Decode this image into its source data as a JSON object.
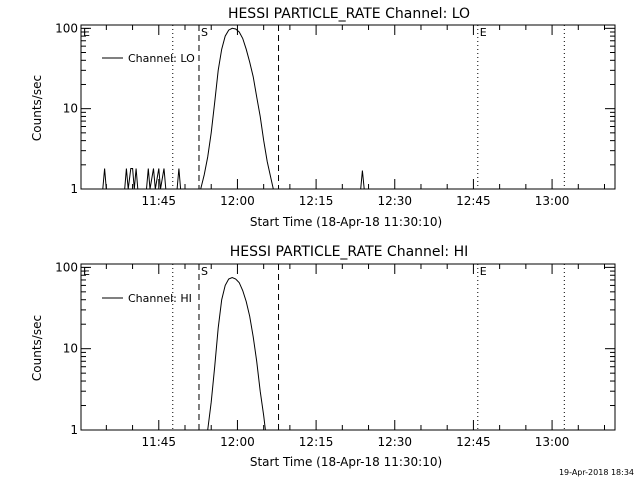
{
  "footer": {
    "timestamp": "19-Apr-2018 18:34"
  },
  "chart_data": [
    {
      "type": "line",
      "title": "HESSI PARTICLE_RATE Channel: LO",
      "xlabel": "Start Time (18-Apr-18 11:30:10)",
      "ylabel": "Counts/sec",
      "y_scale": "log",
      "ylim": [
        1,
        110
      ],
      "xlim": [
        "11:30:10",
        "13:12:00"
      ],
      "x_ticks": [
        "11:45",
        "12:00",
        "12:15",
        "12:30",
        "12:45",
        "13:00"
      ],
      "y_ticks": [
        "1",
        "10",
        "100"
      ],
      "legend": {
        "entries": [
          "Channel: LO"
        ],
        "position": "top-left"
      },
      "markers": [
        {
          "label": "E",
          "time": "11:30:10",
          "style": "none"
        },
        {
          "label": "",
          "time": "11:47:40",
          "style": "dotted"
        },
        {
          "label": "S",
          "time": "11:52:40",
          "style": "dashed"
        },
        {
          "label": "",
          "time": "12:07:50",
          "style": "dashed"
        },
        {
          "label": "E",
          "time": "12:45:50",
          "style": "dotted"
        },
        {
          "label": "",
          "time": "13:02:20",
          "style": "dotted"
        }
      ],
      "series": [
        {
          "name": "Channel: LO",
          "points": [
            [
              "11:34:20",
              1
            ],
            [
              "11:34:40",
              1.8
            ],
            [
              "11:35:00",
              1
            ],
            [
              "11:38:30",
              1
            ],
            [
              "11:38:50",
              1.8
            ],
            [
              "11:39:10",
              1
            ],
            [
              "11:39:40",
              1.8
            ],
            [
              "11:40:00",
              1.8
            ],
            [
              "11:40:20",
              1
            ],
            [
              "11:40:40",
              1.8
            ],
            [
              "11:41:00",
              1
            ],
            [
              "11:42:40",
              1
            ],
            [
              "11:43:00",
              1.8
            ],
            [
              "11:43:20",
              1
            ],
            [
              "11:44:00",
              1.8
            ],
            [
              "11:44:20",
              1
            ],
            [
              "11:45:00",
              1.8
            ],
            [
              "11:45:20",
              1
            ],
            [
              "11:46:00",
              1.8
            ],
            [
              "11:46:20",
              1
            ],
            [
              "11:48:30",
              1
            ],
            [
              "11:48:50",
              1.8
            ],
            [
              "11:49:10",
              1
            ],
            [
              "11:53:00",
              1
            ],
            [
              "11:53:40",
              1.5
            ],
            [
              "11:54:20",
              2.5
            ],
            [
              "11:55:00",
              5
            ],
            [
              "11:55:40",
              12
            ],
            [
              "11:56:20",
              30
            ],
            [
              "11:57:00",
              55
            ],
            [
              "11:57:40",
              80
            ],
            [
              "11:58:20",
              95
            ],
            [
              "11:59:00",
              100
            ],
            [
              "11:59:40",
              98
            ],
            [
              "12:00:20",
              90
            ],
            [
              "12:01:00",
              75
            ],
            [
              "12:01:40",
              55
            ],
            [
              "12:02:20",
              38
            ],
            [
              "12:03:00",
              25
            ],
            [
              "12:03:40",
              14
            ],
            [
              "12:04:20",
              8
            ],
            [
              "12:05:00",
              4
            ],
            [
              "12:05:40",
              2.2
            ],
            [
              "12:06:20",
              1.4
            ],
            [
              "12:06:50",
              1
            ],
            [
              "12:23:30",
              1
            ],
            [
              "12:23:50",
              1.7
            ],
            [
              "12:24:10",
              1
            ]
          ]
        }
      ]
    },
    {
      "type": "line",
      "title": "HESSI PARTICLE_RATE Channel: HI",
      "xlabel": "Start Time (18-Apr-18 11:30:10)",
      "ylabel": "Counts/sec",
      "y_scale": "log",
      "ylim": [
        1,
        110
      ],
      "xlim": [
        "11:30:10",
        "13:12:00"
      ],
      "x_ticks": [
        "11:45",
        "12:00",
        "12:15",
        "12:30",
        "12:45",
        "13:00"
      ],
      "y_ticks": [
        "1",
        "10",
        "100"
      ],
      "legend": {
        "entries": [
          "Channel: HI"
        ],
        "position": "top-left"
      },
      "markers": [
        {
          "label": "E",
          "time": "11:30:10",
          "style": "none"
        },
        {
          "label": "",
          "time": "11:47:40",
          "style": "dotted"
        },
        {
          "label": "S",
          "time": "11:52:40",
          "style": "dashed"
        },
        {
          "label": "",
          "time": "12:07:50",
          "style": "dashed"
        },
        {
          "label": "E",
          "time": "12:45:50",
          "style": "dotted"
        },
        {
          "label": "",
          "time": "13:02:20",
          "style": "dotted"
        }
      ],
      "series": [
        {
          "name": "Channel: HI",
          "points": [
            [
              "11:54:20",
              1
            ],
            [
              "11:55:00",
              2.2
            ],
            [
              "11:55:40",
              6
            ],
            [
              "11:56:20",
              18
            ],
            [
              "11:57:00",
              40
            ],
            [
              "11:57:40",
              60
            ],
            [
              "11:58:20",
              72
            ],
            [
              "11:59:00",
              75
            ],
            [
              "11:59:40",
              72
            ],
            [
              "12:00:20",
              65
            ],
            [
              "12:01:00",
              52
            ],
            [
              "12:01:40",
              38
            ],
            [
              "12:02:20",
              25
            ],
            [
              "12:03:00",
              14
            ],
            [
              "12:03:40",
              7
            ],
            [
              "12:04:20",
              3
            ],
            [
              "12:05:00",
              1.5
            ],
            [
              "12:05:20",
              1
            ]
          ]
        }
      ]
    }
  ]
}
